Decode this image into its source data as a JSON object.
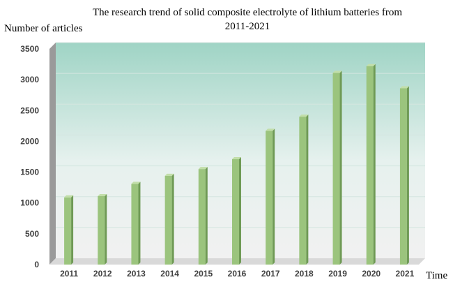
{
  "chart_data": {
    "type": "bar",
    "title_lines": [
      "The research trend of solid composite electrolyte of lithium batteries from",
      "2011-2021"
    ],
    "xlabel": "Time",
    "ylabel": "Number of articles",
    "categories": [
      "2011",
      "2012",
      "2013",
      "2014",
      "2015",
      "2016",
      "2017",
      "2018",
      "2019",
      "2020",
      "2021"
    ],
    "values": [
      1090,
      1110,
      1310,
      1440,
      1550,
      1710,
      2170,
      2400,
      3110,
      3220,
      2860
    ],
    "ylim": [
      0,
      3500
    ],
    "yticks": [
      0,
      500,
      1000,
      1500,
      2000,
      2500,
      3000,
      3500
    ],
    "grid": true,
    "legend": "none",
    "colors": {
      "bar_front": "#9bc47d",
      "bar_side": "#6f9a55",
      "bar_top": "#c2dea9",
      "plot_bg_top": "#9fd4c5",
      "plot_bg_bottom": "#f1f1f1",
      "floor": "#d9d9d9",
      "wall_side": "#9a9a9a"
    }
  }
}
